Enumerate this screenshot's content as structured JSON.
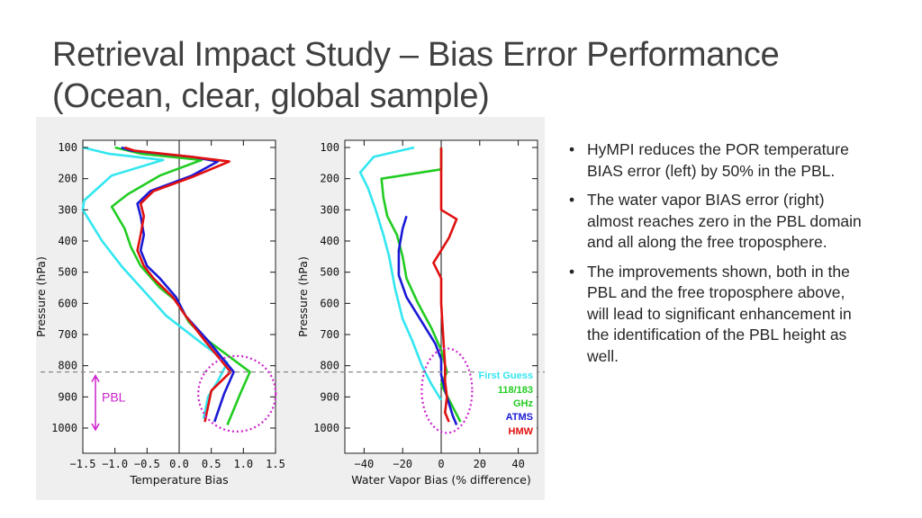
{
  "title": {
    "line1": "Retrieval Impact Study – Bias Error Performance",
    "line2": "(Ocean, clear, global sample)"
  },
  "bullets": [
    "HyMPI reduces the POR temperature BIAS error (left) by 50% in the PBL.",
    "The water vapor BIAS error (right) almost reaches zero in the PBL domain and all along the free troposphere.",
    "The improvements shown, both in the PBL and the free troposphere above, will lead to significant enhancement in the identification of the PBL height as well."
  ],
  "bullet_symbol": "•",
  "colors": {
    "first_guess": "#33e6f0",
    "mw_118_183": "#22cc22",
    "atms": "#1a1ad6",
    "hmw": "#e01010",
    "pbl": "#cc22cc",
    "dashed_line": "#888888"
  },
  "pbl_label": "PBL",
  "legend": {
    "first_guess": "First Guess",
    "mw_line1": "118/183",
    "mw_line2": "GHz",
    "atms": "ATMS",
    "hmw": "HMW"
  },
  "chart_data": [
    {
      "type": "line",
      "xlabel": "Temperature Bias",
      "ylabel": "Pressure (hPa)",
      "xlim": [
        -1.5,
        1.5
      ],
      "ylim": [
        1000,
        100
      ],
      "y_inverted": true,
      "xticks": [
        "−1.5",
        "−1.0",
        "−0.5",
        "0.0",
        "0.5",
        "1.0",
        "1.5"
      ],
      "xtick_values": [
        -1.5,
        -1.0,
        -0.5,
        0.0,
        0.5,
        1.0,
        1.5
      ],
      "yticks": [
        "100",
        "200",
        "300",
        "400",
        "500",
        "600",
        "700",
        "800",
        "900",
        "1000"
      ],
      "ytick_values": [
        100,
        200,
        300,
        400,
        500,
        600,
        700,
        800,
        900,
        1000
      ],
      "zero_line": 0,
      "series": [
        {
          "name": "First Guess",
          "color_key": "first_guess",
          "points": [
            [
              -1.5,
              100
            ],
            [
              -1.1,
              120
            ],
            [
              -0.25,
              140
            ],
            [
              -1.05,
              190
            ],
            [
              -1.48,
              270
            ],
            [
              -1.5,
              300
            ],
            [
              -1.2,
              400
            ],
            [
              -0.9,
              480
            ],
            [
              -0.55,
              560
            ],
            [
              -0.2,
              640
            ],
            [
              0.3,
              720
            ],
            [
              0.75,
              790
            ],
            [
              0.6,
              850
            ],
            [
              0.45,
              900
            ],
            [
              0.38,
              970
            ]
          ]
        },
        {
          "name": "118/183 GHz",
          "color_key": "mw_118_183",
          "points": [
            [
              -1.0,
              100
            ],
            [
              -0.6,
              120
            ],
            [
              0.35,
              140
            ],
            [
              -0.3,
              190
            ],
            [
              -0.8,
              250
            ],
            [
              -1.05,
              290
            ],
            [
              -0.85,
              360
            ],
            [
              -0.75,
              420
            ],
            [
              -0.6,
              480
            ],
            [
              -0.3,
              550
            ],
            [
              0.0,
              600
            ],
            [
              0.15,
              660
            ],
            [
              0.45,
              720
            ],
            [
              1.1,
              820
            ],
            [
              0.95,
              890
            ],
            [
              0.75,
              990
            ]
          ]
        },
        {
          "name": "ATMS",
          "color_key": "atms",
          "points": [
            [
              -0.9,
              100
            ],
            [
              -0.75,
              110
            ],
            [
              0.2,
              130
            ],
            [
              0.6,
              145
            ],
            [
              0.2,
              190
            ],
            [
              -0.45,
              240
            ],
            [
              -0.65,
              280
            ],
            [
              -0.6,
              320
            ],
            [
              -0.55,
              380
            ],
            [
              -0.6,
              430
            ],
            [
              -0.5,
              480
            ],
            [
              -0.3,
              520
            ],
            [
              -0.05,
              580
            ],
            [
              0.1,
              640
            ],
            [
              0.45,
              720
            ],
            [
              0.85,
              820
            ],
            [
              0.7,
              890
            ],
            [
              0.55,
              980
            ]
          ]
        },
        {
          "name": "HMW",
          "color_key": "hmw",
          "points": [
            [
              -0.85,
              100
            ],
            [
              -0.7,
              110
            ],
            [
              0.2,
              130
            ],
            [
              0.78,
              145
            ],
            [
              0.2,
              195
            ],
            [
              -0.4,
              240
            ],
            [
              -0.6,
              280
            ],
            [
              -0.55,
              320
            ],
            [
              -0.6,
              380
            ],
            [
              -0.65,
              430
            ],
            [
              -0.55,
              480
            ],
            [
              -0.4,
              520
            ],
            [
              -0.1,
              580
            ],
            [
              0.1,
              640
            ],
            [
              0.4,
              720
            ],
            [
              0.8,
              820
            ],
            [
              0.5,
              880
            ],
            [
              0.4,
              980
            ]
          ]
        }
      ],
      "annotation": {
        "label": "PBL",
        "from": 820,
        "to": 1000
      }
    },
    {
      "type": "line",
      "xlabel": "Water Vapor Bias (% difference)",
      "ylabel": "Pressure (hPa)",
      "xlim": [
        -50,
        50
      ],
      "ylim": [
        1000,
        100
      ],
      "y_inverted": true,
      "xticks": [
        "−40",
        "−20",
        "0",
        "20",
        "40"
      ],
      "xtick_values": [
        -40,
        -20,
        0,
        20,
        40
      ],
      "yticks": [
        "100",
        "200",
        "300",
        "400",
        "500",
        "600",
        "700",
        "800",
        "900",
        "1000"
      ],
      "ytick_values": [
        100,
        200,
        300,
        400,
        500,
        600,
        700,
        800,
        900,
        1000
      ],
      "zero_line": 0,
      "series": [
        {
          "name": "First Guess",
          "color_key": "first_guess",
          "points": [
            [
              -14,
              100
            ],
            [
              -35,
              130
            ],
            [
              -42,
              180
            ],
            [
              -38,
              230
            ],
            [
              -34,
              300
            ],
            [
              -30,
              380
            ],
            [
              -27,
              450
            ],
            [
              -24,
              550
            ],
            [
              -20,
              650
            ],
            [
              -15,
              720
            ],
            [
              -10,
              800
            ],
            [
              -5,
              860
            ],
            [
              0,
              910
            ]
          ]
        },
        {
          "name": "118/183 GHz",
          "color_key": "mw_118_183",
          "points": [
            [
              0,
              100
            ],
            [
              0,
              170
            ],
            [
              -31,
              200
            ],
            [
              -30,
              260
            ],
            [
              -28,
              320
            ],
            [
              -23,
              380
            ],
            [
              -20,
              450
            ],
            [
              -18,
              520
            ],
            [
              -12,
              600
            ],
            [
              -5,
              680
            ],
            [
              0,
              750
            ],
            [
              3,
              820
            ],
            [
              0,
              860
            ],
            [
              5,
              920
            ],
            [
              10,
              980
            ]
          ]
        },
        {
          "name": "ATMS",
          "color_key": "atms",
          "points": [
            [
              -18,
              320
            ],
            [
              -20,
              360
            ],
            [
              -22,
              430
            ],
            [
              -22,
              510
            ],
            [
              -18,
              580
            ],
            [
              -10,
              660
            ],
            [
              -3,
              730
            ],
            [
              0,
              780
            ],
            [
              0,
              830
            ],
            [
              3,
              900
            ],
            [
              6,
              960
            ],
            [
              8,
              990
            ]
          ]
        },
        {
          "name": "HMW",
          "color_key": "hmw",
          "points": [
            [
              0,
              100
            ],
            [
              0,
              300
            ],
            [
              8,
              330
            ],
            [
              4,
              390
            ],
            [
              0,
              430
            ],
            [
              -4,
              470
            ],
            [
              0,
              520
            ],
            [
              0,
              600
            ],
            [
              1,
              700
            ],
            [
              2,
              800
            ],
            [
              2,
              850
            ],
            [
              3,
              900
            ],
            [
              2,
              950
            ],
            [
              4,
              980
            ]
          ]
        }
      ]
    }
  ]
}
